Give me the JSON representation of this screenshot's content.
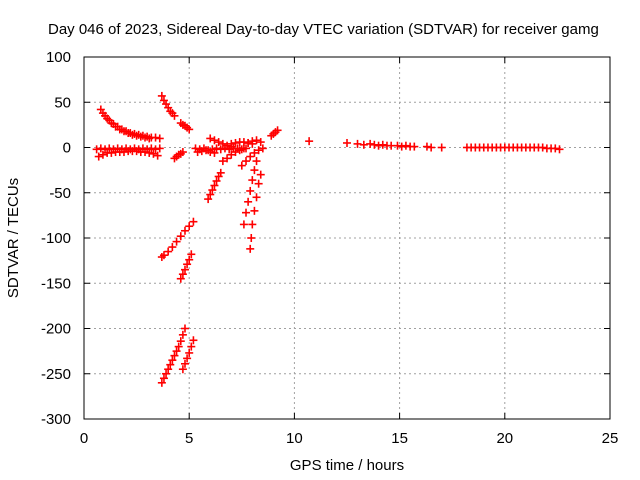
{
  "chart_data": {
    "type": "scatter",
    "title": "Day 046 of 2023, Sidereal Day-to-day VTEC variation (SDTVAR) for receiver gamg",
    "xlabel": "GPS time / hours",
    "ylabel": "SDTVAR / TECUs",
    "xlim": [
      0,
      25
    ],
    "ylim": [
      -300,
      100
    ],
    "x_ticks": [
      0,
      5,
      10,
      15,
      20,
      25
    ],
    "y_ticks": [
      -300,
      -250,
      -200,
      -150,
      -100,
      -50,
      0,
      50,
      100
    ],
    "x_tick_labels": [
      "0",
      "5",
      "10",
      "15",
      "20",
      "25"
    ],
    "y_tick_labels": [
      "-300",
      "-250",
      "-200",
      "-150",
      "-100",
      "-50",
      "0",
      "50",
      "100"
    ],
    "grid": true,
    "marker": "+",
    "marker_color": "#ff0000",
    "series": [
      {
        "name": "SDTVAR",
        "segments": [
          {
            "x": [
              0.6,
              0.8,
              1.0,
              1.2,
              1.4,
              1.6,
              1.8,
              2.0,
              2.2,
              2.4,
              2.6,
              2.8,
              3.0,
              3.2,
              3.4,
              3.6
            ],
            "y": [
              -2,
              -1,
              -2,
              -1,
              -2,
              -1,
              -2,
              -1,
              -2,
              -1,
              -2,
              -1,
              -2,
              -1,
              -2,
              -1
            ]
          },
          {
            "x": [
              0.7,
              0.9,
              1.1,
              1.3,
              1.5,
              1.7,
              1.9,
              2.1,
              2.3,
              2.5,
              2.7,
              2.9,
              3.1,
              3.3,
              3.5
            ],
            "y": [
              -10,
              -8,
              -6,
              -6,
              -5,
              -5,
              -5,
              -4,
              -4,
              -4,
              -5,
              -5,
              -6,
              -7,
              -9
            ]
          },
          {
            "x": [
              0.8,
              1.0,
              1.2,
              1.4,
              1.6,
              1.8,
              2.0,
              2.2,
              2.4,
              2.6,
              2.8,
              3.0,
              3.2,
              3.4,
              3.6
            ],
            "y": [
              42,
              35,
              30,
              26,
              23,
              20,
              18,
              16,
              15,
              14,
              13,
              12,
              11,
              11,
              10
            ]
          },
          {
            "x": [
              0.9,
              1.1,
              1.3,
              1.5,
              1.7,
              1.9,
              2.1,
              2.3,
              2.5,
              2.7,
              2.9,
              3.1
            ],
            "y": [
              38,
              32,
              27,
              23,
              20,
              18,
              16,
              14,
              13,
              12,
              11,
              10
            ]
          },
          {
            "x": [
              3.7,
              3.8,
              3.9,
              4.0,
              4.1,
              4.2,
              4.3
            ],
            "y": [
              57,
              52,
              48,
              44,
              40,
              38,
              35
            ]
          },
          {
            "x": [
              4.6,
              4.7,
              4.8,
              4.9,
              5.0
            ],
            "y": [
              27,
              25,
              24,
              22,
              20
            ]
          },
          {
            "x": [
              4.3,
              4.4,
              4.5,
              4.6,
              4.7
            ],
            "y": [
              -12,
              -10,
              -8,
              -7,
              -5
            ]
          },
          {
            "x": [
              3.7,
              3.8,
              4.0,
              4.2,
              4.4,
              4.6,
              4.8,
              5.0,
              5.2
            ],
            "y": [
              -121,
              -119,
              -115,
              -110,
              -104,
              -98,
              -92,
              -87,
              -82
            ]
          },
          {
            "x": [
              4.6,
              4.7,
              4.8,
              4.9,
              5.0,
              5.1
            ],
            "y": [
              -145,
              -140,
              -135,
              -129,
              -124,
              -118
            ]
          },
          {
            "x": [
              3.7,
              3.8,
              3.9,
              4.0,
              4.1,
              4.2,
              4.3,
              4.4,
              4.5,
              4.6,
              4.7,
              4.8
            ],
            "y": [
              -260,
              -255,
              -250,
              -245,
              -240,
              -235,
              -230,
              -225,
              -220,
              -214,
              -207,
              -200
            ]
          },
          {
            "x": [
              4.7,
              4.8,
              4.9,
              5.0,
              5.1,
              5.2
            ],
            "y": [
              -245,
              -239,
              -233,
              -227,
              -220,
              -213
            ]
          },
          {
            "x": [
              5.3,
              5.5,
              5.7,
              5.9,
              6.1,
              6.3,
              6.5,
              6.7,
              6.9,
              7.1,
              7.3,
              7.5,
              7.7
            ],
            "y": [
              -1,
              -2,
              -1,
              -3,
              -2,
              -1,
              -2,
              -1,
              -2,
              -1,
              -1,
              -2,
              -1
            ]
          },
          {
            "x": [
              5.4,
              5.6,
              5.8,
              6.0,
              6.2
            ],
            "y": [
              -5,
              -4,
              -3,
              -5,
              -6
            ]
          },
          {
            "x": [
              6.0,
              6.2,
              6.4,
              6.6,
              6.8,
              7.0
            ],
            "y": [
              10,
              8,
              6,
              4,
              2,
              1
            ]
          },
          {
            "x": [
              6.6,
              6.8,
              7.0,
              7.2,
              7.4,
              7.6
            ],
            "y": [
              -15,
              -12,
              -8,
              -5,
              -3,
              -1
            ]
          },
          {
            "x": [
              7.0,
              7.2,
              7.4,
              7.6,
              7.8,
              8.0
            ],
            "y": [
              4,
              5,
              6,
              6,
              5,
              4
            ]
          },
          {
            "x": [
              7.5,
              7.7,
              7.9,
              8.1,
              8.3,
              8.5
            ],
            "y": [
              -20,
              -15,
              -10,
              -6,
              -3,
              -1
            ]
          },
          {
            "x": [
              7.8,
              8.0,
              8.2,
              8.4
            ],
            "y": [
              5,
              7,
              8,
              6
            ]
          },
          {
            "x": [
              5.9,
              6.0,
              6.1,
              6.2,
              6.3,
              6.4,
              6.5
            ],
            "y": [
              -57,
              -52,
              -47,
              -42,
              -37,
              -32,
              -28
            ]
          },
          {
            "x": [
              7.9,
              7.95,
              8.0,
              8.1,
              8.2,
              8.3,
              8.4
            ],
            "y": [
              -112,
              -100,
              -85,
              -70,
              -55,
              -40,
              -30
            ]
          },
          {
            "x": [
              7.6,
              7.7,
              7.8,
              7.9,
              8.0,
              8.1,
              8.2
            ],
            "y": [
              -85,
              -72,
              -60,
              -48,
              -36,
              -25,
              -15
            ]
          },
          {
            "x": [
              8.9,
              9.0,
              9.1,
              9.2
            ],
            "y": [
              13,
              15,
              17,
              19
            ]
          },
          {
            "x": [
              10.7
            ],
            "y": [
              7
            ]
          },
          {
            "x": [
              12.5
            ],
            "y": [
              5
            ]
          },
          {
            "x": [
              13.0,
              13.3,
              13.6,
              13.8,
              14.0,
              14.2,
              14.4,
              14.6
            ],
            "y": [
              4,
              3,
              4,
              3,
              2,
              3,
              2,
              2
            ]
          },
          {
            "x": [
              14.9,
              15.1,
              15.3,
              15.5,
              15.7
            ],
            "y": [
              2,
              1,
              2,
              1,
              1
            ]
          },
          {
            "x": [
              16.3,
              16.5
            ],
            "y": [
              1,
              0
            ]
          },
          {
            "x": [
              17.0
            ],
            "y": [
              0
            ]
          },
          {
            "x": [
              18.2,
              18.4,
              18.6,
              18.8,
              19.0,
              19.2,
              19.4,
              19.6,
              19.8,
              20.0,
              20.2,
              20.4,
              20.6,
              20.8,
              21.0,
              21.2,
              21.4,
              21.6,
              21.8,
              22.0,
              22.2,
              22.4,
              22.6
            ],
            "y": [
              0,
              0,
              0,
              0,
              0,
              0,
              0,
              0,
              0,
              0,
              0,
              0,
              0,
              0,
              0,
              0,
              0,
              0,
              0,
              -1,
              -1,
              -1,
              -2
            ]
          }
        ]
      }
    ]
  }
}
